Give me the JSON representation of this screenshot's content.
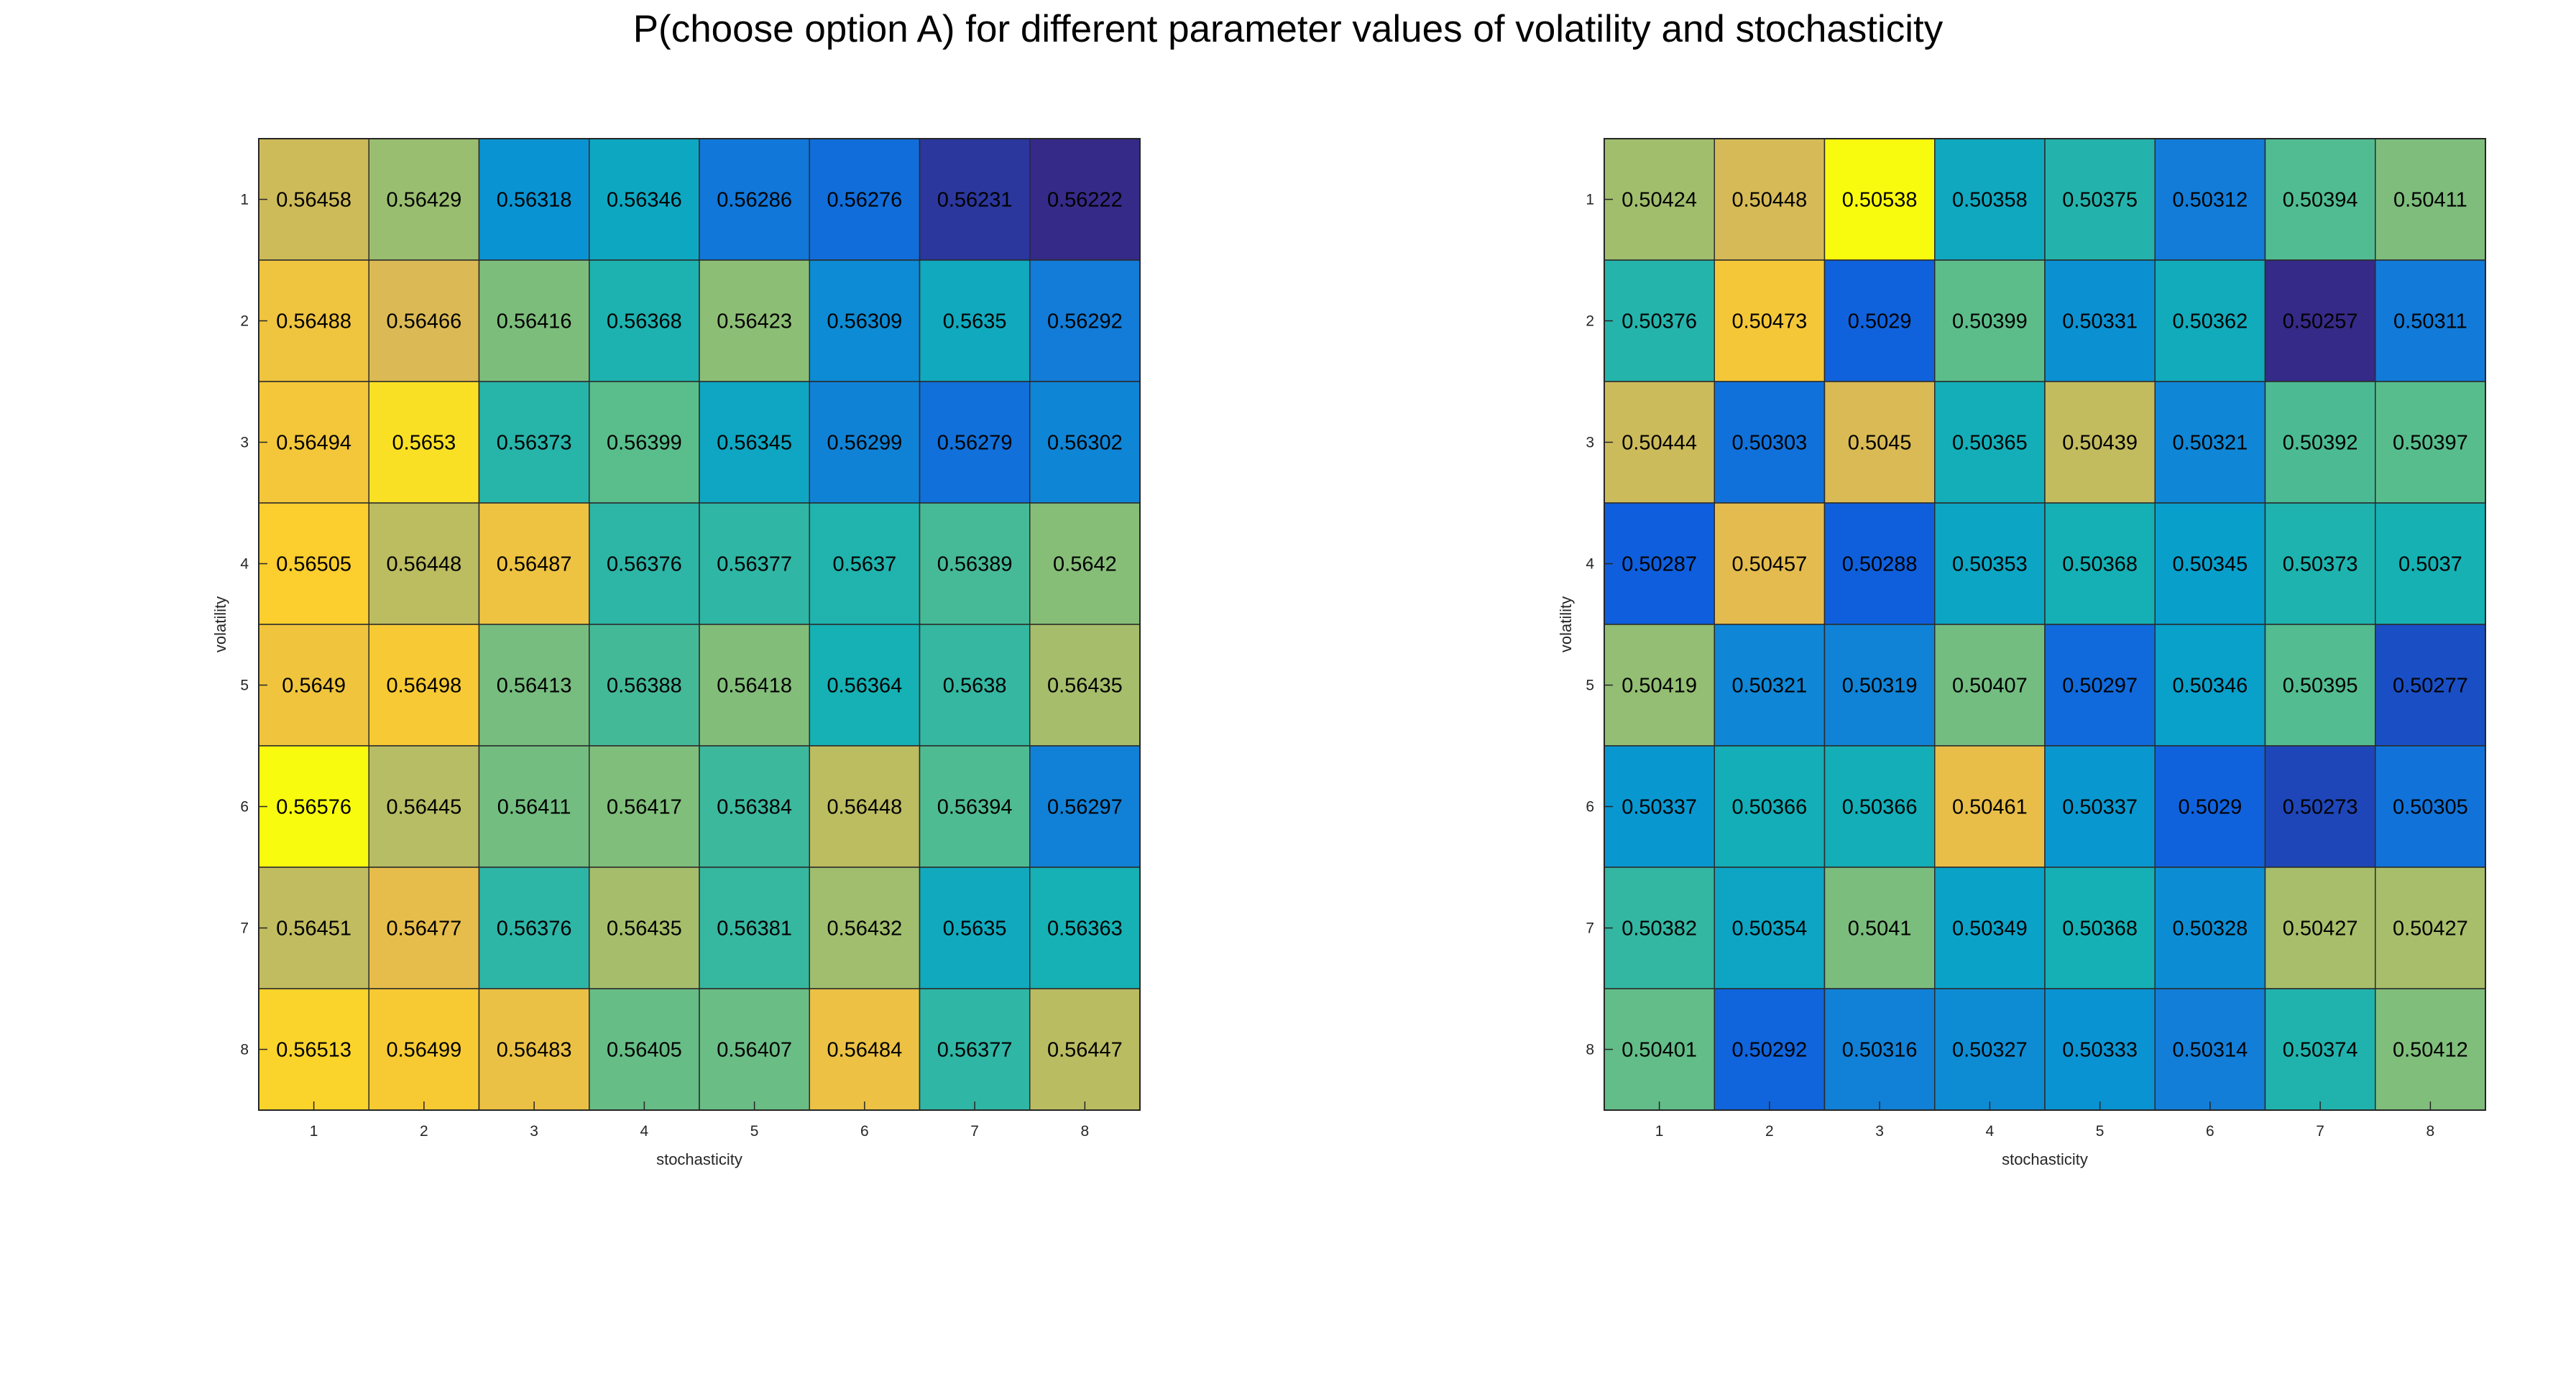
{
  "figure": {
    "title": "P(choose option A) for different parameter values of volatility and stochasticity"
  },
  "chart_data": [
    {
      "type": "heatmap",
      "xlabel": "stochasticity",
      "ylabel": "volatility",
      "x_ticks": [
        "1",
        "2",
        "3",
        "4",
        "5",
        "6",
        "7",
        "8"
      ],
      "y_ticks": [
        "1",
        "2",
        "3",
        "4",
        "5",
        "6",
        "7",
        "8"
      ],
      "colormap": "parula",
      "values": [
        [
          "0.56458",
          "0.56429",
          "0.56318",
          "0.56346",
          "0.56286",
          "0.56276",
          "0.56231",
          "0.56222"
        ],
        [
          "0.56488",
          "0.56466",
          "0.56416",
          "0.56368",
          "0.56423",
          "0.56309",
          "0.5635",
          "0.56292"
        ],
        [
          "0.56494",
          "0.5653",
          "0.56373",
          "0.56399",
          "0.56345",
          "0.56299",
          "0.56279",
          "0.56302"
        ],
        [
          "0.56505",
          "0.56448",
          "0.56487",
          "0.56376",
          "0.56377",
          "0.5637",
          "0.56389",
          "0.5642"
        ],
        [
          "0.5649",
          "0.56498",
          "0.56413",
          "0.56388",
          "0.56418",
          "0.56364",
          "0.5638",
          "0.56435"
        ],
        [
          "0.56576",
          "0.56445",
          "0.56411",
          "0.56417",
          "0.56384",
          "0.56448",
          "0.56394",
          "0.56297"
        ],
        [
          "0.56451",
          "0.56477",
          "0.56376",
          "0.56435",
          "0.56381",
          "0.56432",
          "0.5635",
          "0.56363"
        ],
        [
          "0.56513",
          "0.56499",
          "0.56483",
          "0.56405",
          "0.56407",
          "0.56484",
          "0.56377",
          "0.56447"
        ]
      ]
    },
    {
      "type": "heatmap",
      "xlabel": "stochasticity",
      "ylabel": "volatility",
      "x_ticks": [
        "1",
        "2",
        "3",
        "4",
        "5",
        "6",
        "7",
        "8"
      ],
      "y_ticks": [
        "1",
        "2",
        "3",
        "4",
        "5",
        "6",
        "7",
        "8"
      ],
      "colormap": "parula",
      "values": [
        [
          "0.50424",
          "0.50448",
          "0.50538",
          "0.50358",
          "0.50375",
          "0.50312",
          "0.50394",
          "0.50411"
        ],
        [
          "0.50376",
          "0.50473",
          "0.5029",
          "0.50399",
          "0.50331",
          "0.50362",
          "0.50257",
          "0.50311"
        ],
        [
          "0.50444",
          "0.50303",
          "0.5045",
          "0.50365",
          "0.50439",
          "0.50321",
          "0.50392",
          "0.50397"
        ],
        [
          "0.50287",
          "0.50457",
          "0.50288",
          "0.50353",
          "0.50368",
          "0.50345",
          "0.50373",
          "0.5037"
        ],
        [
          "0.50419",
          "0.50321",
          "0.50319",
          "0.50407",
          "0.50297",
          "0.50346",
          "0.50395",
          "0.50277"
        ],
        [
          "0.50337",
          "0.50366",
          "0.50366",
          "0.50461",
          "0.50337",
          "0.5029",
          "0.50273",
          "0.50305"
        ],
        [
          "0.50382",
          "0.50354",
          "0.5041",
          "0.50349",
          "0.50368",
          "0.50328",
          "0.50427",
          "0.50427"
        ],
        [
          "0.50401",
          "0.50292",
          "0.50316",
          "0.50327",
          "0.50333",
          "0.50314",
          "0.50374",
          "0.50412"
        ]
      ]
    }
  ]
}
